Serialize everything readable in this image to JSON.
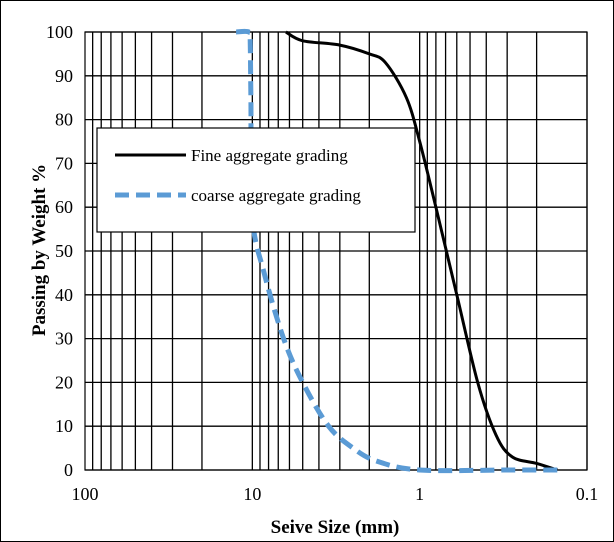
{
  "chart_data": {
    "type": "line",
    "xlabel": "Seive Size (mm)",
    "ylabel": "Passing by Weight %",
    "x_scale": "log",
    "x_reversed": true,
    "xlim": [
      100,
      0.1
    ],
    "ylim": [
      0,
      100
    ],
    "x_ticks": [
      "100",
      "10",
      "1",
      "0.1"
    ],
    "y_ticks": [
      "0",
      "10",
      "20",
      "30",
      "40",
      "50",
      "60",
      "70",
      "80",
      "90",
      "100"
    ],
    "grid": "log-minor vertical + horizontal major",
    "legend_position": "upper-left",
    "series": [
      {
        "name": "Fine aggregate grading",
        "color": "#000000",
        "dash": "solid",
        "points": [
          [
            6.3,
            100
          ],
          [
            5.0,
            98
          ],
          [
            3.0,
            97
          ],
          [
            2.0,
            95
          ],
          [
            1.6,
            93
          ],
          [
            1.2,
            85
          ],
          [
            1.0,
            75
          ],
          [
            0.8,
            60
          ],
          [
            0.6,
            40
          ],
          [
            0.45,
            20
          ],
          [
            0.35,
            8
          ],
          [
            0.28,
            3
          ],
          [
            0.2,
            1.5
          ],
          [
            0.15,
            0
          ]
        ]
      },
      {
        "name": "coarse aggregate grading",
        "color": "#5b9bd5",
        "dash": "dashed",
        "points": [
          [
            12.5,
            100
          ],
          [
            10.5,
            100
          ],
          [
            10.3,
            98
          ],
          [
            10.2,
            85
          ],
          [
            10.0,
            58
          ],
          [
            8.5,
            45
          ],
          [
            6.5,
            30
          ],
          [
            5.0,
            20
          ],
          [
            3.5,
            10
          ],
          [
            2.5,
            5
          ],
          [
            1.8,
            2
          ],
          [
            1.0,
            0
          ],
          [
            0.3,
            0
          ],
          [
            0.15,
            0
          ]
        ]
      }
    ]
  },
  "icons": {
    "legend-solid-line": "solid black line",
    "legend-dashed-line": "dashed blue line"
  }
}
